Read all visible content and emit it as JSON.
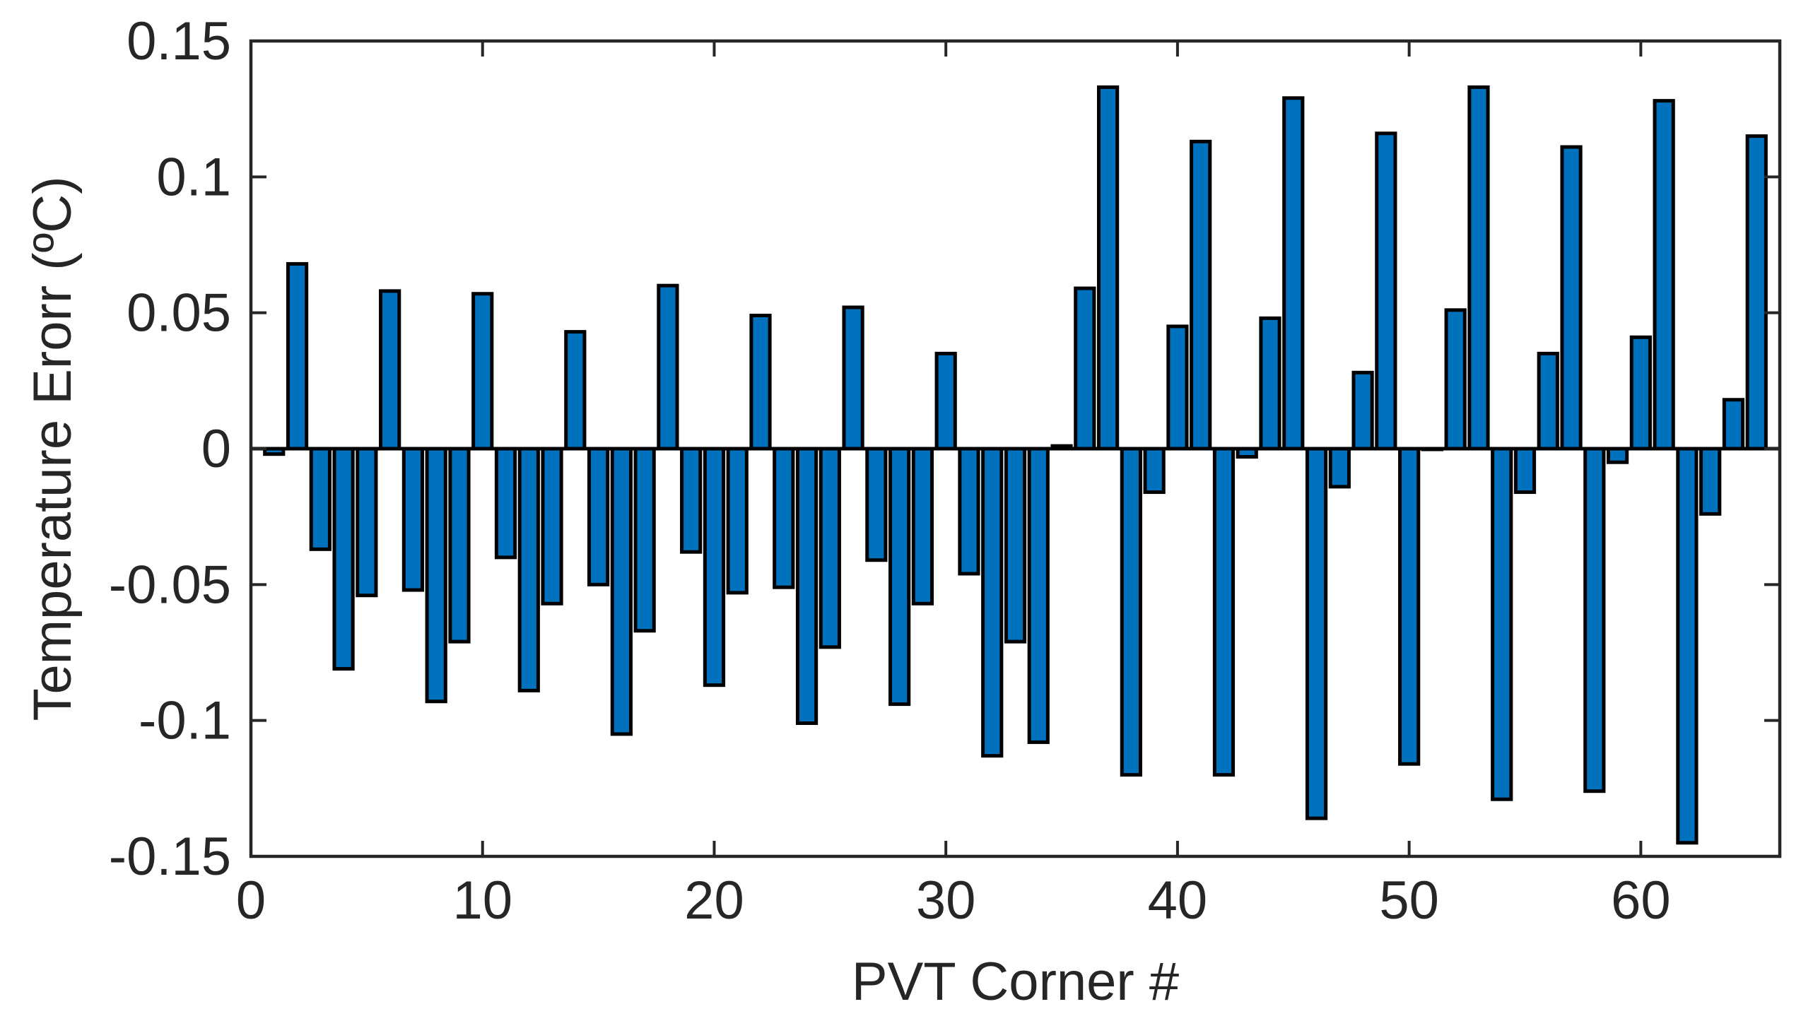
{
  "chart_data": {
    "type": "bar",
    "title": "",
    "xlabel": "PVT Corner #",
    "ylabel": "Temperature Erorr (ºC)",
    "xlim": [
      0,
      66
    ],
    "ylim": [
      -0.15,
      0.15
    ],
    "x_ticks": [
      0,
      10,
      20,
      30,
      40,
      50,
      60
    ],
    "y_ticks": [
      0.15,
      0.1,
      0.05,
      0,
      -0.05,
      -0.1,
      -0.15
    ],
    "x_tick_labels": [
      "0",
      "10",
      "20",
      "30",
      "40",
      "50",
      "60"
    ],
    "y_tick_labels": [
      "0.15",
      "0.1",
      "0.05",
      "0",
      "-0.05",
      "-0.1",
      "-0.15"
    ],
    "bar_color": "#0072BD",
    "edge_color": "#000000",
    "grid": false,
    "x": [
      1,
      2,
      3,
      4,
      5,
      6,
      7,
      8,
      9,
      10,
      11,
      12,
      13,
      14,
      15,
      16,
      17,
      18,
      19,
      20,
      21,
      22,
      23,
      24,
      25,
      26,
      27,
      28,
      29,
      30,
      31,
      32,
      33,
      34,
      35,
      36,
      37,
      38,
      39,
      40,
      41,
      42,
      43,
      44,
      45,
      46,
      47,
      48,
      49,
      50,
      51,
      52,
      53,
      54,
      55,
      56,
      57,
      58,
      59,
      60,
      61,
      62,
      63,
      64,
      65
    ],
    "values": [
      -0.002,
      0.068,
      -0.037,
      -0.081,
      -0.054,
      0.058,
      -0.052,
      -0.093,
      -0.071,
      0.057,
      -0.04,
      -0.089,
      -0.057,
      0.043,
      -0.05,
      -0.105,
      -0.067,
      0.06,
      -0.038,
      -0.087,
      -0.053,
      0.049,
      -0.051,
      -0.101,
      -0.073,
      0.052,
      -0.041,
      -0.094,
      -0.057,
      0.035,
      -0.046,
      -0.113,
      -0.071,
      -0.108,
      0.001,
      0.059,
      0.133,
      -0.12,
      -0.016,
      0.045,
      0.113,
      -0.12,
      -0.003,
      0.048,
      0.129,
      -0.136,
      -0.014,
      0.028,
      0.116,
      -0.116,
      0.0,
      0.051,
      0.133,
      -0.129,
      -0.016,
      0.035,
      0.111,
      -0.126,
      -0.005,
      0.041,
      0.128,
      -0.145,
      -0.024,
      0.018,
      0.115
    ]
  }
}
